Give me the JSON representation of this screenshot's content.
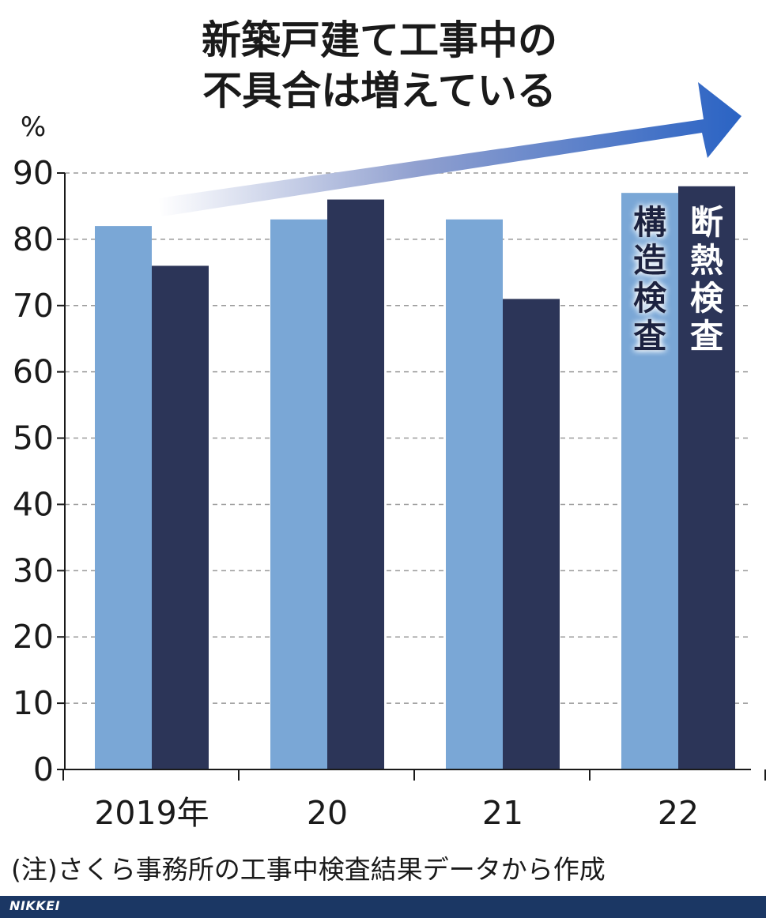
{
  "chart_data": {
    "type": "bar",
    "title_lines": [
      "新築戸建て工事中の",
      "不具合は増えている"
    ],
    "unit": "%",
    "categories": [
      "2019年",
      "20",
      "21",
      "22"
    ],
    "series": [
      {
        "name": "構造検査",
        "color": "#7aa7d6",
        "values": [
          82,
          83,
          83,
          87
        ]
      },
      {
        "name": "断熱検査",
        "color": "#2c3558",
        "values": [
          76,
          86,
          71,
          88
        ]
      }
    ],
    "ylim": [
      0,
      90
    ],
    "yticks": [
      0,
      10,
      20,
      30,
      40,
      50,
      60,
      70,
      80,
      90
    ],
    "grid": true,
    "legend_placement": "inside-bars-right",
    "note": "(注)さくら事務所の工事中検査結果データから作成"
  },
  "footer": {
    "logo": "NIKKEI"
  }
}
